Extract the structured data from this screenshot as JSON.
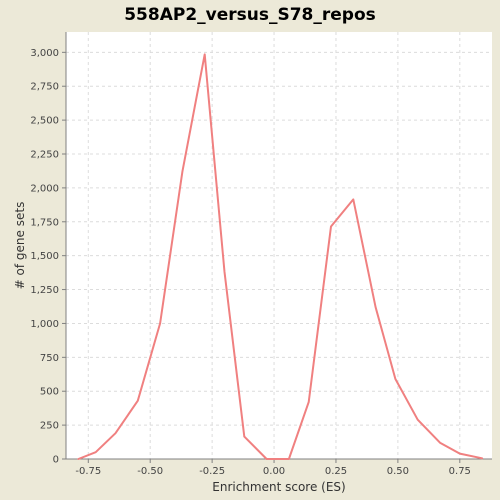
{
  "chart_data": {
    "type": "line",
    "title": "558AP2_versus_S78_repos",
    "xlabel": "Enrichment score (ES)",
    "ylabel": "# of gene sets",
    "xlim": [
      -0.84,
      0.88
    ],
    "ylim": [
      0,
      3150
    ],
    "x_ticks": [
      -0.75,
      -0.5,
      -0.25,
      0.0,
      0.25,
      0.5,
      0.75
    ],
    "x_tick_labels": [
      "-0.75",
      "-0.50",
      "-0.25",
      "0.00",
      "0.25",
      "0.50",
      "0.75"
    ],
    "y_ticks": [
      0,
      250,
      500,
      750,
      1000,
      1250,
      1500,
      1750,
      2000,
      2250,
      2500,
      2750,
      3000
    ],
    "y_tick_labels": [
      "0",
      "250",
      "500",
      "750",
      "1,000",
      "1,250",
      "1,500",
      "1,750",
      "2,000",
      "2,250",
      "2,500",
      "2,750",
      "3,000"
    ],
    "grid": true,
    "series": [
      {
        "color": "#f08080",
        "x": [
          -0.79,
          -0.72,
          -0.64,
          -0.55,
          -0.46,
          -0.37,
          -0.28,
          -0.2,
          -0.12,
          -0.03,
          0.06,
          0.14,
          0.23,
          0.32,
          0.41,
          0.49,
          0.58,
          0.67,
          0.75,
          0.84
        ],
        "y": [
          0,
          50,
          190,
          430,
          1000,
          2120,
          2985,
          1380,
          165,
          0,
          0,
          420,
          1715,
          1915,
          1120,
          590,
          290,
          120,
          40,
          5
        ]
      }
    ]
  }
}
